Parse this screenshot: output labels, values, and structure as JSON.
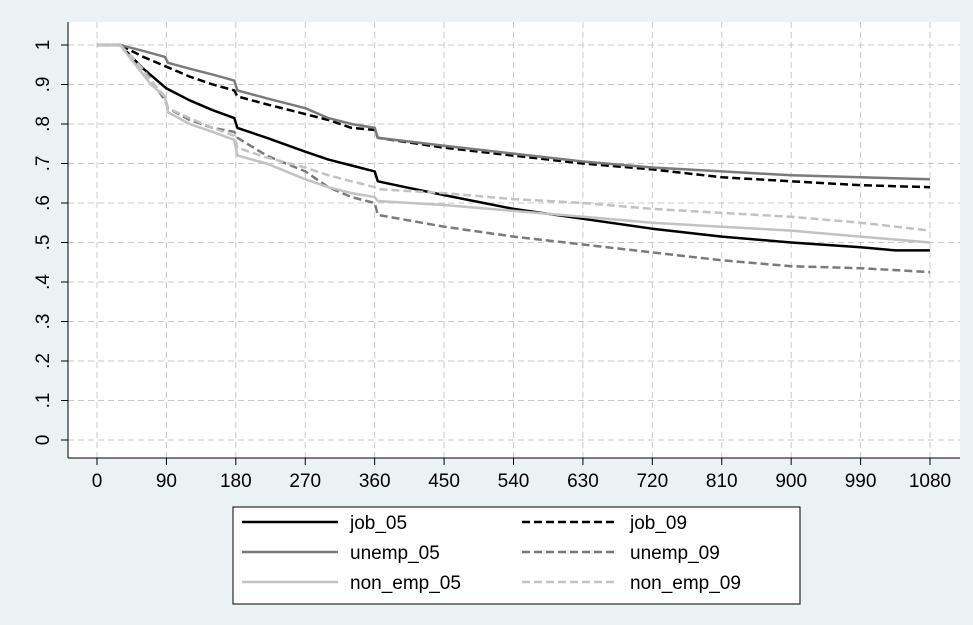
{
  "chart_data": {
    "type": "line",
    "title": "",
    "xlabel": "",
    "ylabel": "",
    "xlim": [
      0,
      1095
    ],
    "ylim": [
      0,
      1
    ],
    "xticks": [
      0,
      90,
      180,
      270,
      360,
      450,
      540,
      630,
      720,
      810,
      900,
      990,
      1080
    ],
    "xtick_labels": [
      "0",
      "90",
      "180",
      "270",
      "360",
      "450",
      "540",
      "630",
      "720",
      "810",
      "900",
      "990",
      "1080"
    ],
    "yticks": [
      0,
      0.1,
      0.2,
      0.3,
      0.4,
      0.5,
      0.6,
      0.7,
      0.8,
      0.9,
      1
    ],
    "ytick_labels": [
      "0",
      ".1",
      ".2",
      ".3",
      ".4",
      ".5",
      ".6",
      ".7",
      ".8",
      ".9",
      "1"
    ],
    "grid": true,
    "legend_position": "bottom",
    "series": [
      {
        "name": "job_05",
        "color": "#000000",
        "dashed": false,
        "points": [
          [
            0,
            1
          ],
          [
            30,
            1
          ],
          [
            45,
            0.97
          ],
          [
            60,
            0.94
          ],
          [
            90,
            0.89
          ],
          [
            120,
            0.86
          ],
          [
            150,
            0.835
          ],
          [
            178,
            0.815
          ],
          [
            182,
            0.79
          ],
          [
            220,
            0.765
          ],
          [
            270,
            0.73
          ],
          [
            300,
            0.71
          ],
          [
            330,
            0.695
          ],
          [
            360,
            0.68
          ],
          [
            364,
            0.655
          ],
          [
            400,
            0.64
          ],
          [
            450,
            0.62
          ],
          [
            540,
            0.585
          ],
          [
            630,
            0.56
          ],
          [
            720,
            0.535
          ],
          [
            810,
            0.515
          ],
          [
            900,
            0.5
          ],
          [
            990,
            0.488
          ],
          [
            1035,
            0.48
          ],
          [
            1080,
            0.48
          ]
        ]
      },
      {
        "name": "job_09",
        "color": "#000000",
        "dashed": true,
        "points": [
          [
            0,
            1
          ],
          [
            30,
            1
          ],
          [
            60,
            0.97
          ],
          [
            90,
            0.945
          ],
          [
            120,
            0.92
          ],
          [
            150,
            0.9
          ],
          [
            178,
            0.885
          ],
          [
            182,
            0.87
          ],
          [
            220,
            0.85
          ],
          [
            270,
            0.825
          ],
          [
            300,
            0.81
          ],
          [
            330,
            0.79
          ],
          [
            360,
            0.785
          ],
          [
            364,
            0.765
          ],
          [
            450,
            0.74
          ],
          [
            540,
            0.72
          ],
          [
            630,
            0.7
          ],
          [
            720,
            0.685
          ],
          [
            810,
            0.665
          ],
          [
            900,
            0.655
          ],
          [
            990,
            0.645
          ],
          [
            1080,
            0.64
          ]
        ]
      },
      {
        "name": "unemp_05",
        "color": "#7a7a7a",
        "dashed": false,
        "points": [
          [
            0,
            1
          ],
          [
            30,
            1
          ],
          [
            60,
            0.985
          ],
          [
            88,
            0.97
          ],
          [
            92,
            0.955
          ],
          [
            120,
            0.94
          ],
          [
            150,
            0.925
          ],
          [
            178,
            0.91
          ],
          [
            182,
            0.885
          ],
          [
            220,
            0.865
          ],
          [
            270,
            0.84
          ],
          [
            300,
            0.815
          ],
          [
            330,
            0.8
          ],
          [
            360,
            0.79
          ],
          [
            364,
            0.765
          ],
          [
            450,
            0.745
          ],
          [
            540,
            0.725
          ],
          [
            630,
            0.705
          ],
          [
            720,
            0.69
          ],
          [
            810,
            0.68
          ],
          [
            900,
            0.67
          ],
          [
            990,
            0.665
          ],
          [
            1080,
            0.66
          ]
        ]
      },
      {
        "name": "unemp_09",
        "color": "#7a7a7a",
        "dashed": true,
        "points": [
          [
            0,
            1
          ],
          [
            30,
            1
          ],
          [
            60,
            0.94
          ],
          [
            88,
            0.86
          ],
          [
            92,
            0.84
          ],
          [
            120,
            0.81
          ],
          [
            150,
            0.79
          ],
          [
            178,
            0.78
          ],
          [
            182,
            0.765
          ],
          [
            220,
            0.72
          ],
          [
            270,
            0.68
          ],
          [
            300,
            0.64
          ],
          [
            330,
            0.615
          ],
          [
            360,
            0.6
          ],
          [
            364,
            0.57
          ],
          [
            450,
            0.54
          ],
          [
            540,
            0.515
          ],
          [
            630,
            0.495
          ],
          [
            720,
            0.475
          ],
          [
            810,
            0.455
          ],
          [
            900,
            0.44
          ],
          [
            990,
            0.435
          ],
          [
            1080,
            0.425
          ]
        ]
      },
      {
        "name": "non_emp_05",
        "color": "#c2c2c2",
        "dashed": false,
        "points": [
          [
            0,
            1
          ],
          [
            30,
            1
          ],
          [
            50,
            0.95
          ],
          [
            70,
            0.9
          ],
          [
            88,
            0.87
          ],
          [
            92,
            0.83
          ],
          [
            120,
            0.8
          ],
          [
            150,
            0.78
          ],
          [
            178,
            0.76
          ],
          [
            182,
            0.72
          ],
          [
            220,
            0.7
          ],
          [
            270,
            0.66
          ],
          [
            300,
            0.64
          ],
          [
            330,
            0.625
          ],
          [
            360,
            0.615
          ],
          [
            364,
            0.605
          ],
          [
            450,
            0.595
          ],
          [
            540,
            0.58
          ],
          [
            630,
            0.565
          ],
          [
            720,
            0.55
          ],
          [
            810,
            0.54
          ],
          [
            900,
            0.53
          ],
          [
            990,
            0.515
          ],
          [
            1080,
            0.5
          ]
        ]
      },
      {
        "name": "non_emp_09",
        "color": "#c2c2c2",
        "dashed": true,
        "points": [
          [
            0,
            1
          ],
          [
            30,
            1
          ],
          [
            50,
            0.96
          ],
          [
            70,
            0.91
          ],
          [
            88,
            0.87
          ],
          [
            92,
            0.84
          ],
          [
            120,
            0.815
          ],
          [
            150,
            0.79
          ],
          [
            178,
            0.77
          ],
          [
            182,
            0.74
          ],
          [
            220,
            0.715
          ],
          [
            270,
            0.69
          ],
          [
            300,
            0.67
          ],
          [
            330,
            0.655
          ],
          [
            360,
            0.64
          ],
          [
            364,
            0.635
          ],
          [
            450,
            0.625
          ],
          [
            540,
            0.61
          ],
          [
            630,
            0.6
          ],
          [
            720,
            0.585
          ],
          [
            810,
            0.575
          ],
          [
            900,
            0.565
          ],
          [
            990,
            0.55
          ],
          [
            1080,
            0.53
          ]
        ]
      }
    ]
  }
}
